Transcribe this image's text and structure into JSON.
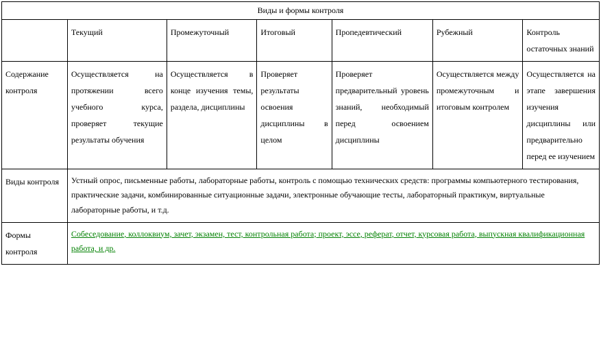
{
  "table": {
    "title": "Виды и формы контроля",
    "headers": {
      "empty": "",
      "tek": "Текущий",
      "prom": "Промежуточный",
      "itog": "Итоговый",
      "prop": "Пропедевтический",
      "rub": "Рубежный",
      "kont": "Контроль остаточных знаний"
    },
    "row1": {
      "label": "Содержание контроля",
      "tek": "Осуществляется на протяжении всего учебного курса, проверяет текущие результаты обучения",
      "prom": "Осуществляется в конце изучения темы, раздела, дисциплины",
      "itog": "Проверяет результаты освоения дисциплины в целом",
      "prop": "Проверяет предварительный уровень знаний, необходимый перед освоением дисциплины",
      "rub": "Осуществляется между промежуточным и итоговым контролем",
      "kont": "Осуществляется на этапе завершения изучения дисциплины или предварительно перед ее изучением"
    },
    "row2": {
      "label": "Виды контроля",
      "merged": "Устный опрос, письменные работы, лабораторные работы, контроль с помощью технических средств: программы компьютерного тестирования, практические задачи, комбинированные ситуационные задачи, электронные обучающие тесты, лабораторный практикум, виртуальные лабораторные работы, и т.д."
    },
    "row3": {
      "label": "Формы контроля",
      "merged": "Собеседование, коллоквиум, зачет, экзамен, тест, контрольная работа; проект, эссе, реферат, отчет, курсовая работа, выпускная квалификационная работа, и др."
    }
  },
  "style": {
    "font_family": "Times New Roman",
    "font_size_pt": 12,
    "border_color": "#000000",
    "background_color": "#ffffff",
    "green_text_color": "#008000",
    "line_height": 2.0
  }
}
